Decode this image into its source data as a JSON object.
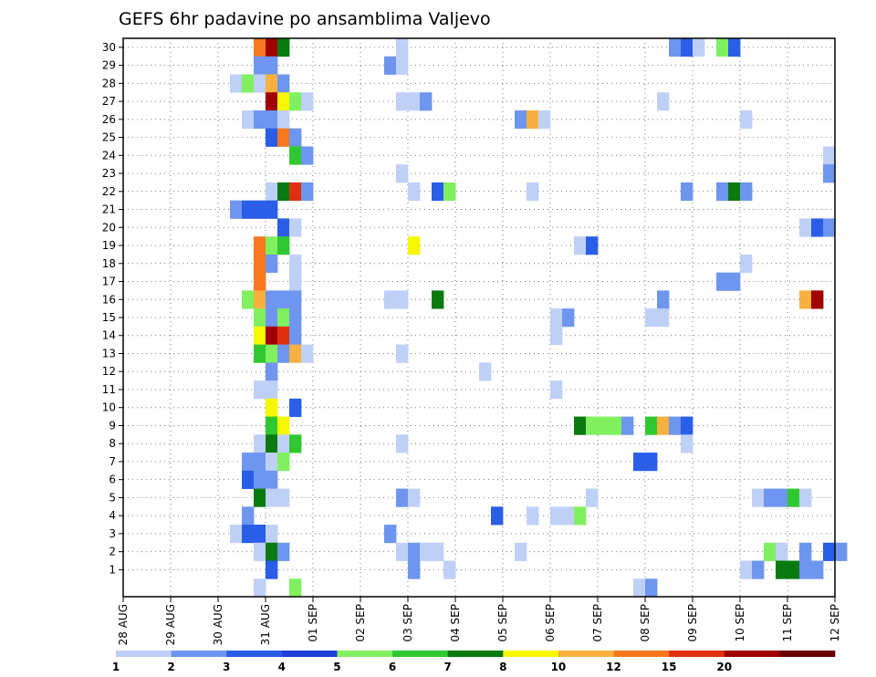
{
  "chart_data": {
    "type": "heatmap",
    "title": "GEFS 6hr padavine po ansamblima Valjevo",
    "xlabel": "",
    "ylabel": "",
    "x_tick_labels": [
      "28 AUG",
      "29 AUG",
      "30 AUG",
      "31 AUG",
      "01 SEP",
      "02 SEP",
      "03 SEP",
      "04 SEP",
      "05 SEP",
      "06 SEP",
      "07 SEP",
      "08 SEP",
      "09 SEP",
      "10 SEP",
      "11 SEP",
      "12 SEP"
    ],
    "x_time_steps_per_day": 4,
    "x_range_days": [
      0,
      15
    ],
    "members": [
      1,
      2,
      3,
      4,
      5,
      6,
      7,
      8,
      9,
      10,
      11,
      12,
      13,
      14,
      15,
      16,
      17,
      18,
      19,
      20,
      21,
      22,
      23,
      24,
      25,
      26,
      27,
      28,
      29,
      30
    ],
    "grid": "dotted",
    "legend": {
      "placement": "bottom",
      "thresholds": [
        1,
        2,
        3,
        4,
        5,
        6,
        7,
        8,
        10,
        12,
        15,
        20
      ],
      "colors": [
        "#bfd0f7",
        "#6e96ee",
        "#2a5ee6",
        "#1f3fd8",
        "#80f060",
        "#30c830",
        "#0a7a10",
        "#f7f700",
        "#f8b040",
        "#f87820",
        "#e03010",
        "#a00000",
        "#6a0000"
      ]
    },
    "cells": [
      {
        "member": 30,
        "step": 11,
        "level": 10
      },
      {
        "member": 30,
        "step": 12,
        "level": 12
      },
      {
        "member": 30,
        "step": 13,
        "level": 7
      },
      {
        "member": 30,
        "step": 23,
        "level": 1
      },
      {
        "member": 30,
        "step": 46,
        "level": 2
      },
      {
        "member": 30,
        "step": 47,
        "level": 3
      },
      {
        "member": 30,
        "step": 48,
        "level": 1
      },
      {
        "member": 30,
        "step": 50,
        "level": 5
      },
      {
        "member": 30,
        "step": 51,
        "level": 3
      },
      {
        "member": 29,
        "step": 11,
        "level": 2
      },
      {
        "member": 29,
        "step": 12,
        "level": 2
      },
      {
        "member": 29,
        "step": 22,
        "level": 2
      },
      {
        "member": 29,
        "step": 23,
        "level": 1
      },
      {
        "member": 28,
        "step": 9,
        "level": 1
      },
      {
        "member": 28,
        "step": 10,
        "level": 5
      },
      {
        "member": 28,
        "step": 11,
        "level": 1
      },
      {
        "member": 28,
        "step": 12,
        "level": 9
      },
      {
        "member": 28,
        "step": 13,
        "level": 2
      },
      {
        "member": 27,
        "step": 12,
        "level": 12
      },
      {
        "member": 27,
        "step": 13,
        "level": 8
      },
      {
        "member": 27,
        "step": 14,
        "level": 5
      },
      {
        "member": 27,
        "step": 15,
        "level": 1
      },
      {
        "member": 27,
        "step": 23,
        "level": 1
      },
      {
        "member": 27,
        "step": 24,
        "level": 1
      },
      {
        "member": 27,
        "step": 25,
        "level": 2
      },
      {
        "member": 27,
        "step": 45,
        "level": 1
      },
      {
        "member": 26,
        "step": 10,
        "level": 1
      },
      {
        "member": 26,
        "step": 11,
        "level": 2
      },
      {
        "member": 26,
        "step": 12,
        "level": 2
      },
      {
        "member": 26,
        "step": 13,
        "level": 1
      },
      {
        "member": 26,
        "step": 33,
        "level": 2
      },
      {
        "member": 26,
        "step": 34,
        "level": 9
      },
      {
        "member": 26,
        "step": 35,
        "level": 1
      },
      {
        "member": 26,
        "step": 52,
        "level": 1
      },
      {
        "member": 25,
        "step": 12,
        "level": 3
      },
      {
        "member": 25,
        "step": 13,
        "level": 10
      },
      {
        "member": 25,
        "step": 14,
        "level": 2
      },
      {
        "member": 24,
        "step": 14,
        "level": 6
      },
      {
        "member": 24,
        "step": 15,
        "level": 2
      },
      {
        "member": 24,
        "step": 59,
        "level": 1
      },
      {
        "member": 23,
        "step": 23,
        "level": 1
      },
      {
        "member": 23,
        "step": 59,
        "level": 2
      },
      {
        "member": 22,
        "step": 12,
        "level": 1
      },
      {
        "member": 22,
        "step": 13,
        "level": 7
      },
      {
        "member": 22,
        "step": 14,
        "level": 11
      },
      {
        "member": 22,
        "step": 15,
        "level": 2
      },
      {
        "member": 22,
        "step": 24,
        "level": 1
      },
      {
        "member": 22,
        "step": 26,
        "level": 3
      },
      {
        "member": 22,
        "step": 27,
        "level": 5
      },
      {
        "member": 22,
        "step": 34,
        "level": 1
      },
      {
        "member": 22,
        "step": 47,
        "level": 2
      },
      {
        "member": 22,
        "step": 50,
        "level": 2
      },
      {
        "member": 22,
        "step": 51,
        "level": 7
      },
      {
        "member": 22,
        "step": 52,
        "level": 2
      },
      {
        "member": 21,
        "step": 9,
        "level": 2
      },
      {
        "member": 21,
        "step": 10,
        "level": 3
      },
      {
        "member": 21,
        "step": 11,
        "level": 3
      },
      {
        "member": 21,
        "step": 12,
        "level": 3
      },
      {
        "member": 20,
        "step": 13,
        "level": 3
      },
      {
        "member": 20,
        "step": 14,
        "level": 1
      },
      {
        "member": 20,
        "step": 57,
        "level": 1
      },
      {
        "member": 20,
        "step": 58,
        "level": 3
      },
      {
        "member": 20,
        "step": 59,
        "level": 2
      },
      {
        "member": 19,
        "step": 11,
        "level": 10
      },
      {
        "member": 19,
        "step": 12,
        "level": 5
      },
      {
        "member": 19,
        "step": 13,
        "level": 6
      },
      {
        "member": 19,
        "step": 24,
        "level": 8
      },
      {
        "member": 19,
        "step": 38,
        "level": 1
      },
      {
        "member": 19,
        "step": 39,
        "level": 3
      },
      {
        "member": 18,
        "step": 11,
        "level": 10
      },
      {
        "member": 18,
        "step": 12,
        "level": 2
      },
      {
        "member": 18,
        "step": 14,
        "level": 1
      },
      {
        "member": 18,
        "step": 52,
        "level": 1
      },
      {
        "member": 17,
        "step": 11,
        "level": 10
      },
      {
        "member": 17,
        "step": 14,
        "level": 1
      },
      {
        "member": 17,
        "step": 50,
        "level": 2
      },
      {
        "member": 17,
        "step": 51,
        "level": 2
      },
      {
        "member": 16,
        "step": 10,
        "level": 5
      },
      {
        "member": 16,
        "step": 11,
        "level": 9
      },
      {
        "member": 16,
        "step": 12,
        "level": 2
      },
      {
        "member": 16,
        "step": 13,
        "level": 2
      },
      {
        "member": 16,
        "step": 14,
        "level": 2
      },
      {
        "member": 16,
        "step": 22,
        "level": 1
      },
      {
        "member": 16,
        "step": 23,
        "level": 1
      },
      {
        "member": 16,
        "step": 26,
        "level": 7
      },
      {
        "member": 16,
        "step": 45,
        "level": 2
      },
      {
        "member": 16,
        "step": 57,
        "level": 9
      },
      {
        "member": 16,
        "step": 58,
        "level": 12
      },
      {
        "member": 15,
        "step": 11,
        "level": 5
      },
      {
        "member": 15,
        "step": 12,
        "level": 2
      },
      {
        "member": 15,
        "step": 13,
        "level": 5
      },
      {
        "member": 15,
        "step": 14,
        "level": 2
      },
      {
        "member": 15,
        "step": 36,
        "level": 1
      },
      {
        "member": 15,
        "step": 37,
        "level": 2
      },
      {
        "member": 15,
        "step": 44,
        "level": 1
      },
      {
        "member": 15,
        "step": 45,
        "level": 1
      },
      {
        "member": 14,
        "step": 11,
        "level": 8
      },
      {
        "member": 14,
        "step": 12,
        "level": 12
      },
      {
        "member": 14,
        "step": 13,
        "level": 11
      },
      {
        "member": 14,
        "step": 14,
        "level": 2
      },
      {
        "member": 14,
        "step": 36,
        "level": 1
      },
      {
        "member": 13,
        "step": 11,
        "level": 6
      },
      {
        "member": 13,
        "step": 12,
        "level": 5
      },
      {
        "member": 13,
        "step": 13,
        "level": 2
      },
      {
        "member": 13,
        "step": 14,
        "level": 9
      },
      {
        "member": 13,
        "step": 15,
        "level": 1
      },
      {
        "member": 13,
        "step": 23,
        "level": 1
      },
      {
        "member": 12,
        "step": 12,
        "level": 2
      },
      {
        "member": 12,
        "step": 30,
        "level": 1
      },
      {
        "member": 11,
        "step": 11,
        "level": 1
      },
      {
        "member": 11,
        "step": 12,
        "level": 1
      },
      {
        "member": 11,
        "step": 36,
        "level": 1
      },
      {
        "member": 10,
        "step": 12,
        "level": 8
      },
      {
        "member": 10,
        "step": 14,
        "level": 3
      },
      {
        "member": 9,
        "step": 12,
        "level": 6
      },
      {
        "member": 9,
        "step": 13,
        "level": 8
      },
      {
        "member": 9,
        "step": 38,
        "level": 7
      },
      {
        "member": 9,
        "step": 39,
        "level": 5
      },
      {
        "member": 9,
        "step": 40,
        "level": 5
      },
      {
        "member": 9,
        "step": 41,
        "level": 5
      },
      {
        "member": 9,
        "step": 42,
        "level": 2
      },
      {
        "member": 9,
        "step": 44,
        "level": 6
      },
      {
        "member": 9,
        "step": 45,
        "level": 9
      },
      {
        "member": 9,
        "step": 46,
        "level": 2
      },
      {
        "member": 9,
        "step": 47,
        "level": 3
      },
      {
        "member": 8,
        "step": 11,
        "level": 1
      },
      {
        "member": 8,
        "step": 12,
        "level": 7
      },
      {
        "member": 8,
        "step": 13,
        "level": 1
      },
      {
        "member": 8,
        "step": 14,
        "level": 6
      },
      {
        "member": 8,
        "step": 23,
        "level": 1
      },
      {
        "member": 8,
        "step": 47,
        "level": 1
      },
      {
        "member": 7,
        "step": 10,
        "level": 2
      },
      {
        "member": 7,
        "step": 11,
        "level": 2
      },
      {
        "member": 7,
        "step": 12,
        "level": 1
      },
      {
        "member": 7,
        "step": 13,
        "level": 5
      },
      {
        "member": 7,
        "step": 43,
        "level": 3
      },
      {
        "member": 7,
        "step": 44,
        "level": 3
      },
      {
        "member": 6,
        "step": 10,
        "level": 3
      },
      {
        "member": 6,
        "step": 11,
        "level": 2
      },
      {
        "member": 6,
        "step": 12,
        "level": 2
      },
      {
        "member": 5,
        "step": 11,
        "level": 7
      },
      {
        "member": 5,
        "step": 12,
        "level": 1
      },
      {
        "member": 5,
        "step": 13,
        "level": 1
      },
      {
        "member": 5,
        "step": 23,
        "level": 2
      },
      {
        "member": 5,
        "step": 24,
        "level": 1
      },
      {
        "member": 5,
        "step": 39,
        "level": 1
      },
      {
        "member": 5,
        "step": 53,
        "level": 1
      },
      {
        "member": 5,
        "step": 54,
        "level": 2
      },
      {
        "member": 5,
        "step": 55,
        "level": 2
      },
      {
        "member": 5,
        "step": 56,
        "level": 6
      },
      {
        "member": 5,
        "step": 57,
        "level": 1
      },
      {
        "member": 4,
        "step": 10,
        "level": 2
      },
      {
        "member": 4,
        "step": 31,
        "level": 3
      },
      {
        "member": 4,
        "step": 34,
        "level": 1
      },
      {
        "member": 4,
        "step": 36,
        "level": 1
      },
      {
        "member": 4,
        "step": 37,
        "level": 1
      },
      {
        "member": 4,
        "step": 38,
        "level": 5
      },
      {
        "member": 3,
        "step": 9,
        "level": 1
      },
      {
        "member": 3,
        "step": 10,
        "level": 3
      },
      {
        "member": 3,
        "step": 11,
        "level": 3
      },
      {
        "member": 3,
        "step": 12,
        "level": 1
      },
      {
        "member": 3,
        "step": 22,
        "level": 2
      },
      {
        "member": 2,
        "step": 11,
        "level": 1
      },
      {
        "member": 2,
        "step": 12,
        "level": 7
      },
      {
        "member": 2,
        "step": 13,
        "level": 2
      },
      {
        "member": 2,
        "step": 23,
        "level": 1
      },
      {
        "member": 2,
        "step": 24,
        "level": 2
      },
      {
        "member": 2,
        "step": 25,
        "level": 1
      },
      {
        "member": 2,
        "step": 26,
        "level": 1
      },
      {
        "member": 2,
        "step": 33,
        "level": 1
      },
      {
        "member": 2,
        "step": 54,
        "level": 5
      },
      {
        "member": 2,
        "step": 55,
        "level": 1
      },
      {
        "member": 2,
        "step": 57,
        "level": 2
      },
      {
        "member": 2,
        "step": 59,
        "level": 3
      },
      {
        "member": 2,
        "step": 60,
        "level": 2
      },
      {
        "member": 1,
        "step": 12,
        "level": 3
      },
      {
        "member": 1,
        "step": 24,
        "level": 2
      },
      {
        "member": 1,
        "step": 27,
        "level": 1
      },
      {
        "member": 1,
        "step": 52,
        "level": 1
      },
      {
        "member": 1,
        "step": 53,
        "level": 2
      },
      {
        "member": 1,
        "step": 55,
        "level": 7
      },
      {
        "member": 1,
        "step": 56,
        "level": 7
      },
      {
        "member": 1,
        "step": 57,
        "level": 2
      },
      {
        "member": 1,
        "step": 58,
        "level": 2
      },
      {
        "member": 0,
        "step": 11,
        "level": 1
      },
      {
        "member": 0,
        "step": 14,
        "level": 5
      },
      {
        "member": 0,
        "step": 43,
        "level": 1
      },
      {
        "member": 0,
        "step": 44,
        "level": 2
      }
    ]
  }
}
